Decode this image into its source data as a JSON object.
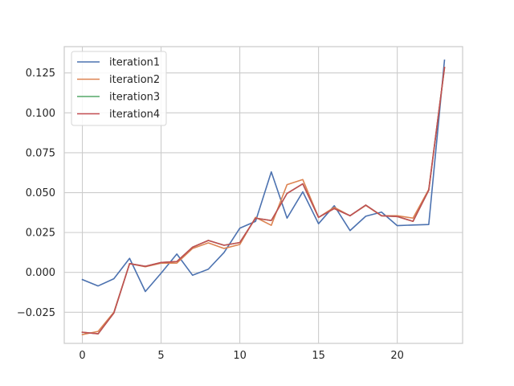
{
  "chart_data": {
    "type": "line",
    "title": "",
    "xlabel": "",
    "ylabel": "",
    "xlim": [
      -1.15,
      24.15
    ],
    "ylim": [
      -0.0445,
      0.1415
    ],
    "grid": true,
    "legend_position": "top-left",
    "x_ticks": [
      0,
      5,
      10,
      15,
      20
    ],
    "x_tick_labels": [
      "0",
      "5",
      "10",
      "15",
      "20"
    ],
    "y_ticks": [
      -0.025,
      0.0,
      0.025,
      0.05,
      0.075,
      0.1,
      0.125
    ],
    "y_tick_labels": [
      "−0.025",
      "0.000",
      "0.025",
      "0.050",
      "0.075",
      "0.100",
      "0.125"
    ],
    "x": [
      0,
      1,
      2,
      3,
      4,
      5,
      6,
      7,
      8,
      9,
      10,
      11,
      12,
      13,
      14,
      15,
      16,
      17,
      18,
      19,
      20,
      21,
      22,
      23
    ],
    "series": [
      {
        "name": "iteration1",
        "color": "#4c72b0",
        "values": [
          -0.0045,
          -0.0085,
          -0.004,
          0.0088,
          -0.012,
          -0.0005,
          0.0115,
          -0.0018,
          0.002,
          0.0125,
          0.0277,
          0.032,
          0.063,
          0.034,
          0.0505,
          0.0305,
          0.0418,
          0.0262,
          0.0352,
          0.0378,
          0.0293,
          0.0297,
          0.03,
          0.133
        ]
      },
      {
        "name": "iteration2",
        "color": "#dd8452",
        "values": [
          -0.039,
          -0.037,
          -0.025,
          0.0055,
          0.0035,
          0.0058,
          0.0058,
          0.015,
          0.0185,
          0.015,
          0.0175,
          0.0345,
          0.0295,
          0.055,
          0.0582,
          0.0345,
          0.0408,
          0.0355,
          0.042,
          0.0355,
          0.0355,
          0.034,
          0.052,
          0.128
        ]
      },
      {
        "name": "iteration3",
        "color": "#55a868",
        "values": [
          -0.0375,
          -0.0385,
          -0.0255,
          0.0055,
          0.0038,
          0.0062,
          0.0068,
          0.0158,
          0.02,
          0.017,
          0.0187,
          0.034,
          0.0325,
          0.0495,
          0.0555,
          0.0345,
          0.04,
          0.0355,
          0.0422,
          0.0355,
          0.035,
          0.032,
          0.0515,
          0.1285
        ]
      },
      {
        "name": "iteration4",
        "color": "#c44e52",
        "values": [
          -0.0375,
          -0.0385,
          -0.0255,
          0.0055,
          0.0038,
          0.0062,
          0.0068,
          0.0158,
          0.02,
          0.017,
          0.0187,
          0.034,
          0.0325,
          0.0495,
          0.0555,
          0.0345,
          0.04,
          0.0355,
          0.0422,
          0.0355,
          0.035,
          0.032,
          0.0515,
          0.1285
        ]
      }
    ]
  },
  "colors": {
    "grid": "#cccccc",
    "axes_edge": "#cccccc",
    "text": "#262626"
  }
}
